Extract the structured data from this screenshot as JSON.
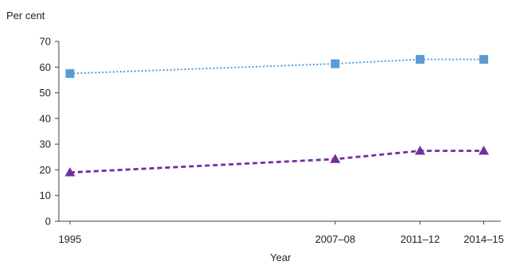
{
  "chart_data": {
    "type": "line",
    "title": "",
    "xlabel": "Year",
    "ylabel": "Per cent",
    "categories": [
      "1995",
      "2007–08",
      "2011–12",
      "2014–15"
    ],
    "x_years": [
      1995,
      2007.5,
      2011.5,
      2014.5
    ],
    "ylim": [
      0,
      70
    ],
    "yticks": [
      0,
      10,
      20,
      30,
      40,
      50,
      60,
      70
    ],
    "grid": false,
    "legend": "none",
    "series": [
      {
        "values": [
          57.5,
          61.3,
          63.0,
          63.0
        ],
        "color": "#5b9bd5",
        "line_style": "dotted",
        "marker": "square"
      },
      {
        "values": [
          19.0,
          24.2,
          27.4,
          27.4
        ],
        "color": "#7030a0",
        "line_style": "dashed",
        "marker": "triangle"
      }
    ]
  }
}
